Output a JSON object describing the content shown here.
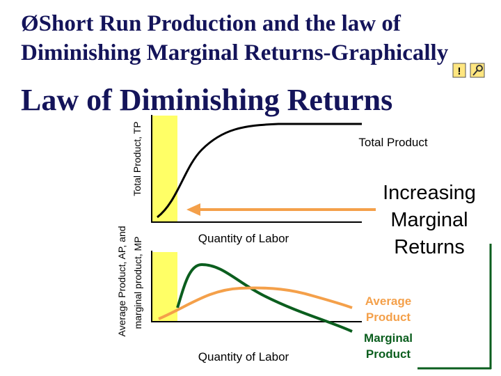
{
  "header": {
    "line1": "ØShort Run Production and the law of",
    "line2": "Diminishing Marginal Returns-Graphically"
  },
  "heading": "Law of Diminishing Returns",
  "top_graph": {
    "y_label": "Total Product, TP",
    "curve_label": "Total Product",
    "x_label": "Quantity of Labor"
  },
  "callout": {
    "lines": [
      "Increasing",
      "Marginal",
      "Returns"
    ]
  },
  "bottom_graph": {
    "y_label_lines": [
      "Average Product, AP, and",
      "marginal product, MP"
    ],
    "x_label": "Quantity of Labor",
    "average_label": [
      "Average",
      "Product"
    ],
    "marginal_label": [
      "Marginal",
      "Product"
    ]
  }
}
